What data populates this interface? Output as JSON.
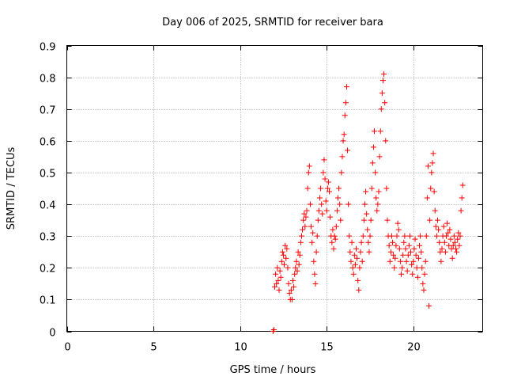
{
  "chart_data": {
    "type": "scatter",
    "title": "Day 006 of 2025, SRMTID for receiver bara",
    "xlabel": "GPS time / hours",
    "ylabel": "SRMTID / TECUs",
    "xlim": [
      0,
      24
    ],
    "ylim": [
      0,
      0.9
    ],
    "xticks": [
      0,
      5,
      10,
      15,
      20
    ],
    "yticks": [
      0,
      0.1,
      0.2,
      0.3,
      0.4,
      0.5,
      0.6,
      0.7,
      0.8,
      0.9
    ],
    "xtick_labels": [
      "0",
      "5",
      "10",
      "15",
      "20"
    ],
    "ytick_labels": [
      "0",
      "0.1",
      "0.2",
      "0.3",
      "0.4",
      "0.5",
      "0.6",
      "0.7",
      "0.8",
      "0.9"
    ],
    "grid": true,
    "marker": "+",
    "color": "#ff0000",
    "series": [
      {
        "name": "SRMTID",
        "points": [
          [
            11.9,
            0.0
          ],
          [
            11.95,
            0.005
          ],
          [
            12.0,
            0.14
          ],
          [
            12.05,
            0.18
          ],
          [
            12.1,
            0.15
          ],
          [
            12.15,
            0.2
          ],
          [
            12.2,
            0.16
          ],
          [
            12.25,
            0.13
          ],
          [
            12.3,
            0.19
          ],
          [
            12.35,
            0.17
          ],
          [
            12.4,
            0.22
          ],
          [
            12.45,
            0.25
          ],
          [
            12.5,
            0.24
          ],
          [
            12.55,
            0.21
          ],
          [
            12.6,
            0.27
          ],
          [
            12.65,
            0.23
          ],
          [
            12.7,
            0.26
          ],
          [
            12.75,
            0.2
          ],
          [
            12.8,
            0.15
          ],
          [
            12.85,
            0.12
          ],
          [
            12.9,
            0.1
          ],
          [
            12.95,
            0.13
          ],
          [
            13.0,
            0.1
          ],
          [
            13.05,
            0.16
          ],
          [
            13.1,
            0.14
          ],
          [
            13.15,
            0.18
          ],
          [
            13.2,
            0.2
          ],
          [
            13.25,
            0.22
          ],
          [
            13.3,
            0.19
          ],
          [
            13.35,
            0.25
          ],
          [
            13.4,
            0.21
          ],
          [
            13.45,
            0.24
          ],
          [
            13.5,
            0.28
          ],
          [
            13.55,
            0.3
          ],
          [
            13.6,
            0.32
          ],
          [
            13.65,
            0.35
          ],
          [
            13.7,
            0.37
          ],
          [
            13.75,
            0.33
          ],
          [
            13.8,
            0.36
          ],
          [
            13.85,
            0.38
          ],
          [
            13.9,
            0.45
          ],
          [
            13.95,
            0.5
          ],
          [
            14.0,
            0.52
          ],
          [
            14.05,
            0.4
          ],
          [
            14.1,
            0.33
          ],
          [
            14.15,
            0.28
          ],
          [
            14.2,
            0.31
          ],
          [
            14.25,
            0.22
          ],
          [
            14.3,
            0.18
          ],
          [
            14.35,
            0.15
          ],
          [
            14.4,
            0.25
          ],
          [
            14.45,
            0.3
          ],
          [
            14.5,
            0.35
          ],
          [
            14.55,
            0.38
          ],
          [
            14.6,
            0.42
          ],
          [
            14.65,
            0.45
          ],
          [
            14.7,
            0.4
          ],
          [
            14.75,
            0.37
          ],
          [
            14.8,
            0.5
          ],
          [
            14.85,
            0.54
          ],
          [
            14.9,
            0.48
          ],
          [
            14.95,
            0.41
          ],
          [
            15.0,
            0.38
          ],
          [
            15.05,
            0.45
          ],
          [
            15.1,
            0.47
          ],
          [
            15.15,
            0.44
          ],
          [
            15.2,
            0.36
          ],
          [
            15.25,
            0.3
          ],
          [
            15.3,
            0.28
          ],
          [
            15.35,
            0.32
          ],
          [
            15.4,
            0.26
          ],
          [
            15.45,
            0.3
          ],
          [
            15.5,
            0.29
          ],
          [
            15.55,
            0.33
          ],
          [
            15.6,
            0.38
          ],
          [
            15.65,
            0.42
          ],
          [
            15.7,
            0.45
          ],
          [
            15.75,
            0.4
          ],
          [
            15.8,
            0.35
          ],
          [
            15.85,
            0.5
          ],
          [
            15.9,
            0.55
          ],
          [
            15.95,
            0.6
          ],
          [
            16.0,
            0.62
          ],
          [
            16.05,
            0.68
          ],
          [
            16.1,
            0.72
          ],
          [
            16.15,
            0.77
          ],
          [
            16.2,
            0.57
          ],
          [
            16.25,
            0.4
          ],
          [
            16.3,
            0.3
          ],
          [
            16.35,
            0.25
          ],
          [
            16.4,
            0.22
          ],
          [
            16.45,
            0.28
          ],
          [
            16.5,
            0.2
          ],
          [
            16.55,
            0.18
          ],
          [
            16.6,
            0.24
          ],
          [
            16.65,
            0.21
          ],
          [
            16.7,
            0.26
          ],
          [
            16.75,
            0.23
          ],
          [
            16.8,
            0.16
          ],
          [
            16.85,
            0.13
          ],
          [
            16.9,
            0.2
          ],
          [
            16.95,
            0.25
          ],
          [
            17.0,
            0.28
          ],
          [
            17.05,
            0.22
          ],
          [
            17.1,
            0.3
          ],
          [
            17.15,
            0.35
          ],
          [
            17.2,
            0.4
          ],
          [
            17.25,
            0.44
          ],
          [
            17.3,
            0.37
          ],
          [
            17.35,
            0.32
          ],
          [
            17.4,
            0.28
          ],
          [
            17.45,
            0.25
          ],
          [
            17.5,
            0.3
          ],
          [
            17.55,
            0.35
          ],
          [
            17.6,
            0.45
          ],
          [
            17.65,
            0.53
          ],
          [
            17.7,
            0.58
          ],
          [
            17.75,
            0.63
          ],
          [
            17.8,
            0.5
          ],
          [
            17.85,
            0.42
          ],
          [
            17.9,
            0.38
          ],
          [
            17.95,
            0.4
          ],
          [
            18.0,
            0.44
          ],
          [
            18.05,
            0.55
          ],
          [
            18.1,
            0.63
          ],
          [
            18.15,
            0.7
          ],
          [
            18.2,
            0.75
          ],
          [
            18.25,
            0.79
          ],
          [
            18.3,
            0.81
          ],
          [
            18.35,
            0.72
          ],
          [
            18.4,
            0.6
          ],
          [
            18.45,
            0.45
          ],
          [
            18.5,
            0.35
          ],
          [
            18.55,
            0.3
          ],
          [
            18.6,
            0.27
          ],
          [
            18.65,
            0.22
          ],
          [
            18.7,
            0.25
          ],
          [
            18.75,
            0.3
          ],
          [
            18.8,
            0.28
          ],
          [
            18.85,
            0.24
          ],
          [
            18.9,
            0.2
          ],
          [
            18.95,
            0.23
          ],
          [
            19.0,
            0.27
          ],
          [
            19.05,
            0.3
          ],
          [
            19.1,
            0.34
          ],
          [
            19.15,
            0.32
          ],
          [
            19.2,
            0.26
          ],
          [
            19.25,
            0.22
          ],
          [
            19.3,
            0.18
          ],
          [
            19.35,
            0.2
          ],
          [
            19.4,
            0.24
          ],
          [
            19.45,
            0.28
          ],
          [
            19.5,
            0.3
          ],
          [
            19.55,
            0.26
          ],
          [
            19.6,
            0.22
          ],
          [
            19.65,
            0.19
          ],
          [
            19.7,
            0.24
          ],
          [
            19.75,
            0.27
          ],
          [
            19.8,
            0.3
          ],
          [
            19.85,
            0.25
          ],
          [
            19.9,
            0.21
          ],
          [
            19.95,
            0.18
          ],
          [
            20.0,
            0.22
          ],
          [
            20.05,
            0.26
          ],
          [
            20.1,
            0.29
          ],
          [
            20.15,
            0.24
          ],
          [
            20.2,
            0.2
          ],
          [
            20.25,
            0.17
          ],
          [
            20.3,
            0.23
          ],
          [
            20.35,
            0.27
          ],
          [
            20.4,
            0.3
          ],
          [
            20.45,
            0.25
          ],
          [
            20.5,
            0.2
          ],
          [
            20.55,
            0.15
          ],
          [
            20.6,
            0.13
          ],
          [
            20.65,
            0.18
          ],
          [
            20.7,
            0.22
          ],
          [
            20.75,
            0.3
          ],
          [
            20.8,
            0.42
          ],
          [
            20.85,
            0.52
          ],
          [
            20.9,
            0.08
          ],
          [
            20.95,
            0.35
          ],
          [
            21.0,
            0.45
          ],
          [
            21.05,
            0.5
          ],
          [
            21.1,
            0.53
          ],
          [
            21.15,
            0.56
          ],
          [
            21.2,
            0.44
          ],
          [
            21.25,
            0.38
          ],
          [
            21.3,
            0.33
          ],
          [
            21.35,
            0.3
          ],
          [
            21.4,
            0.35
          ],
          [
            21.45,
            0.32
          ],
          [
            21.5,
            0.28
          ],
          [
            21.55,
            0.25
          ],
          [
            21.6,
            0.22
          ],
          [
            21.65,
            0.26
          ],
          [
            21.7,
            0.3
          ],
          [
            21.75,
            0.33
          ],
          [
            21.8,
            0.28
          ],
          [
            21.85,
            0.25
          ],
          [
            21.9,
            0.3
          ],
          [
            21.95,
            0.34
          ],
          [
            22.0,
            0.31
          ],
          [
            22.05,
            0.27
          ],
          [
            22.1,
            0.32
          ],
          [
            22.15,
            0.29
          ],
          [
            22.2,
            0.26
          ],
          [
            22.25,
            0.23
          ],
          [
            22.3,
            0.27
          ],
          [
            22.35,
            0.3
          ],
          [
            22.4,
            0.28
          ],
          [
            22.45,
            0.26
          ],
          [
            22.5,
            0.25
          ],
          [
            22.55,
            0.29
          ],
          [
            22.6,
            0.31
          ],
          [
            22.65,
            0.27
          ],
          [
            22.7,
            0.3
          ],
          [
            22.75,
            0.38
          ],
          [
            22.8,
            0.42
          ],
          [
            22.85,
            0.46
          ]
        ]
      }
    ]
  }
}
